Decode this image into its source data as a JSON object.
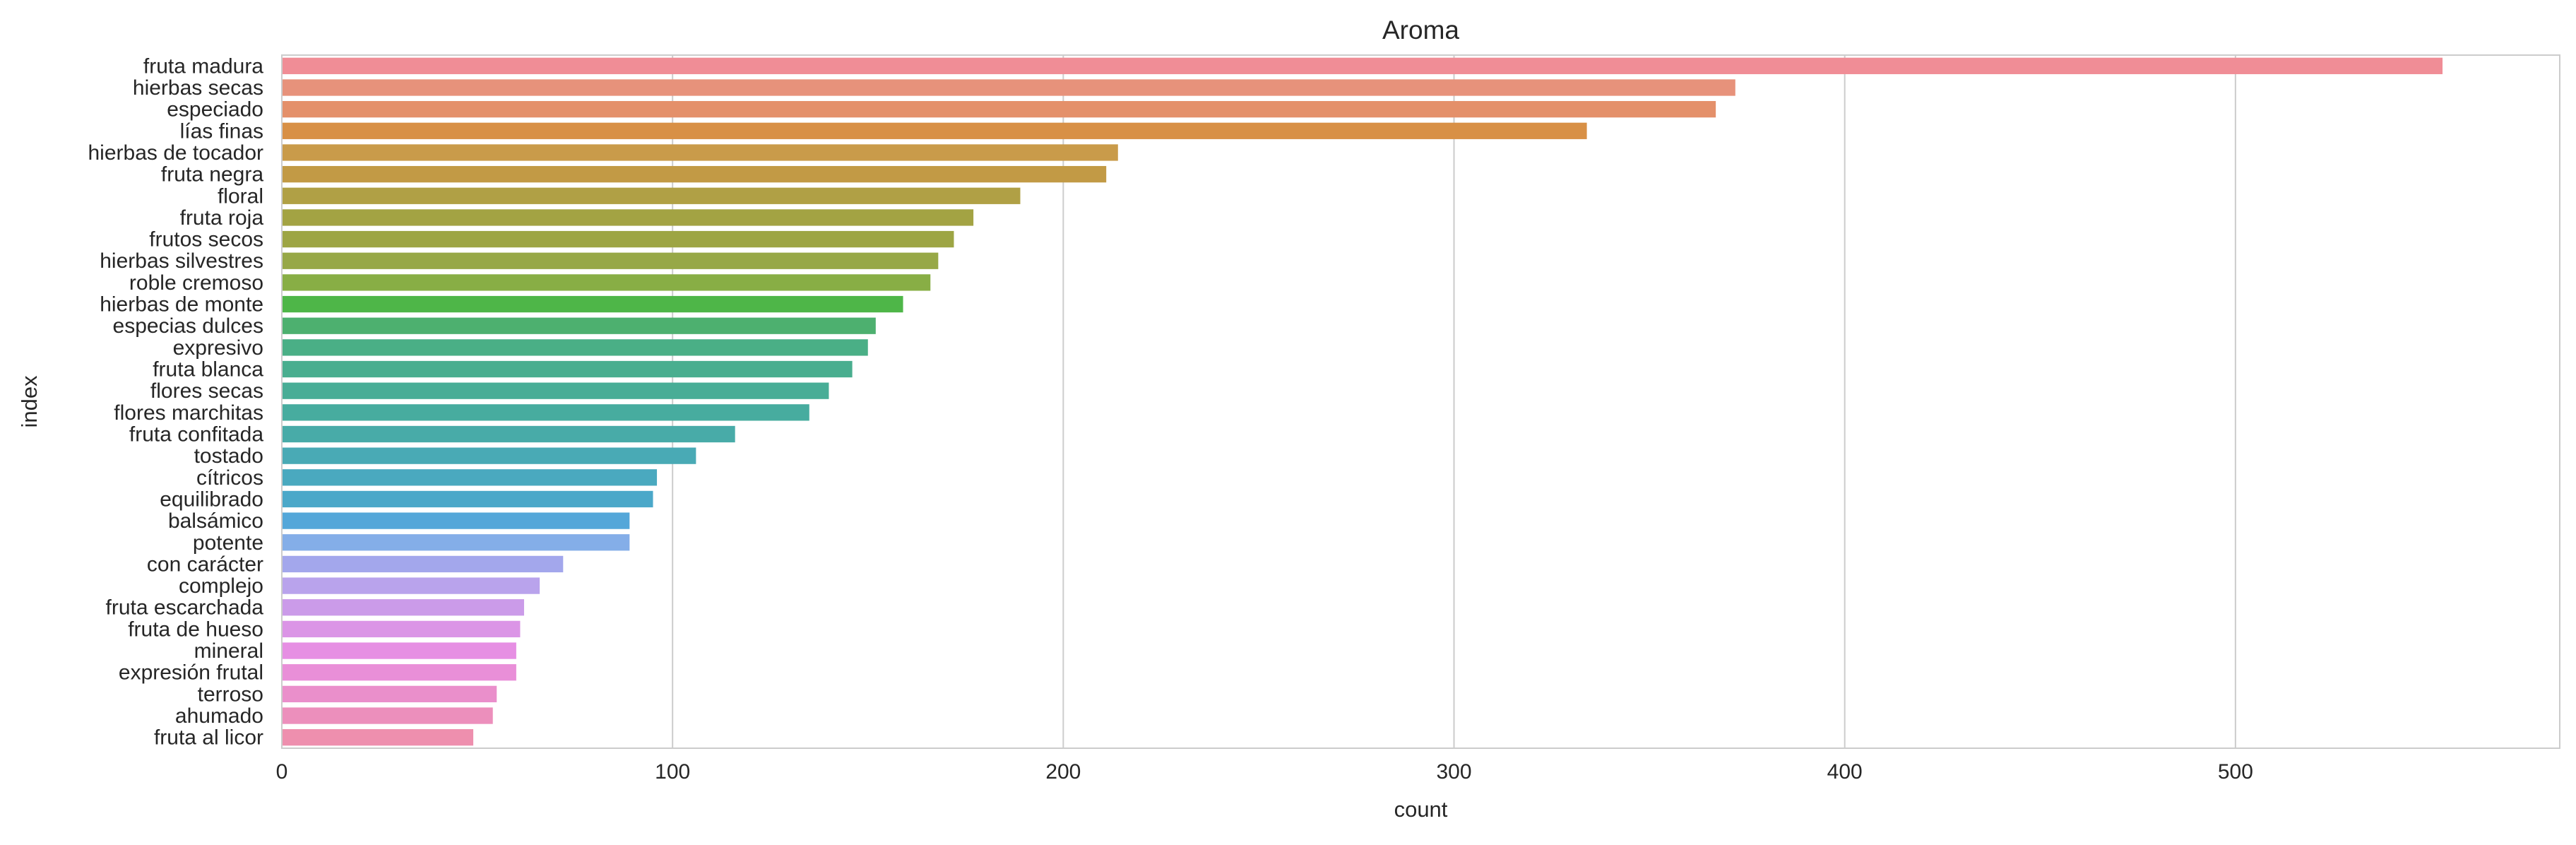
{
  "chart_data": {
    "type": "bar",
    "orientation": "horizontal",
    "title": "Aroma",
    "xlabel": "count",
    "ylabel": "index",
    "xlim": [
      0,
      583
    ],
    "xticks": [
      0,
      100,
      200,
      300,
      400,
      500
    ],
    "grid": "vertical",
    "categories": [
      "fruta madura",
      "hierbas secas",
      "especiado",
      "lías finas",
      "hierbas de tocador",
      "fruta negra",
      "floral",
      "fruta roja",
      "frutos secos",
      "hierbas silvestres",
      "roble cremoso",
      "hierbas de monte",
      "especias dulces",
      "expresivo",
      "fruta blanca",
      "flores secas",
      "flores marchitas",
      "fruta confitada",
      "tostado",
      "cítricos",
      "equilibrado",
      "balsámico",
      "potente",
      "con carácter",
      "complejo",
      "fruta escarchada",
      "fruta de hueso",
      "mineral",
      "expresión frutal",
      "terroso",
      "ahumado",
      "fruta al licor"
    ],
    "values": [
      553,
      372,
      367,
      334,
      214,
      211,
      189,
      177,
      172,
      168,
      166,
      159,
      152,
      150,
      146,
      140,
      135,
      116,
      106,
      96,
      95,
      89,
      89,
      72,
      66,
      62,
      61,
      60,
      60,
      55,
      54,
      49
    ],
    "colors": [
      "#f08d96",
      "#e7927b",
      "#e4906a",
      "#d89046",
      "#c99b4a",
      "#c29a45",
      "#b0a045",
      "#a3a343",
      "#9da544",
      "#97a847",
      "#88ae45",
      "#4eb648",
      "#4db06f",
      "#4aaf86",
      "#49ae8f",
      "#48ad96",
      "#47ac9f",
      "#48aba8",
      "#49aab5",
      "#4aa9bf",
      "#4ba8c9",
      "#54a7d9",
      "#84aee8",
      "#a3a7ec",
      "#b9a3ec",
      "#cb9be9",
      "#db95e6",
      "#e68fe3",
      "#e98fd8",
      "#ea8fcb",
      "#ec8fbc",
      "#ee8fae"
    ]
  }
}
